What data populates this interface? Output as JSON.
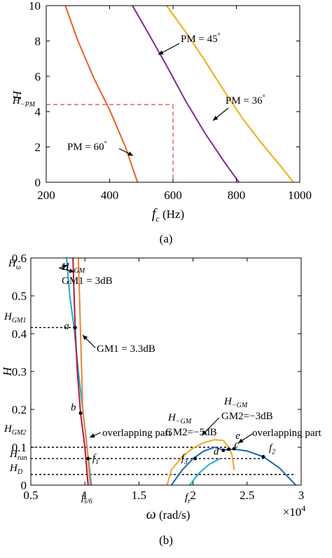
{
  "chart_data": [
    {
      "type": "line",
      "xlim": [
        200,
        1000
      ],
      "ylim": [
        0,
        10
      ],
      "xticks": [
        "200",
        "400",
        "600",
        "800",
        "1000"
      ],
      "yticks": [
        "0",
        "2",
        "4",
        "6",
        "8",
        "10"
      ],
      "xlabel": {
        "var": "f",
        "sub": "c",
        "unit": "(Hz)"
      },
      "ylabel": "H",
      "grid": false,
      "series": [
        {
          "name": "PM = 60°",
          "color": "#ec6024",
          "points": [
            [
              260,
              10.0
            ],
            [
              300,
              8.0
            ],
            [
              350,
              5.9
            ],
            [
              400,
              4.1
            ],
            [
              450,
              2.0
            ],
            [
              488,
              0.0
            ]
          ]
        },
        {
          "name": "PM = 45°",
          "color": "#7d2a96",
          "points": [
            [
              472,
              10.0
            ],
            [
              520,
              8.5
            ],
            [
              580,
              6.6
            ],
            [
              640,
              4.6
            ],
            [
              700,
              2.8
            ],
            [
              760,
              1.2
            ],
            [
              808,
              0.0
            ]
          ]
        },
        {
          "name": "PM = 36°",
          "color": "#f1aa19",
          "points": [
            [
              580,
              10.0
            ],
            [
              640,
              8.5
            ],
            [
              700,
              6.9
            ],
            [
              760,
              5.2
            ],
            [
              820,
              3.6
            ],
            [
              880,
              2.2
            ],
            [
              940,
              0.9
            ],
            [
              980,
              0.0
            ]
          ]
        }
      ],
      "reference": {
        "x": 600,
        "y": 4.4,
        "label": "H",
        "label_sub": "−PM",
        "color": "#e04040"
      },
      "annotations": [
        {
          "text": "PM = 45",
          "deg": "°",
          "at": [
            540,
            7.1
          ]
        },
        {
          "text": "PM = 36",
          "deg": "°",
          "at": [
            855,
            3.5
          ]
        },
        {
          "text": "PM = 60",
          "deg": "°",
          "at": [
            390,
            1.5
          ]
        }
      ],
      "caption": "(a)"
    },
    {
      "type": "line",
      "xlim": [
        0.5,
        3
      ],
      "ylim": [
        0,
        0.6
      ],
      "x_multiplier": "×10",
      "x_multiplier_exp": "4",
      "xticks": [
        "0.5",
        "1",
        "1.5",
        "2",
        "2.5",
        "3"
      ],
      "yticks": [
        "0",
        "0.1",
        "0.2",
        "0.3",
        "0.4",
        "0.5",
        "0.6"
      ],
      "xlabel": {
        "var": "ω",
        "unit": "(rad/s)"
      },
      "ylabel": "H",
      "grid": false,
      "series": [
        {
          "name": "H_ω",
          "color": "#1fa9d8",
          "points": [
            [
              0.83,
              0.6
            ],
            [
              0.86,
              0.5
            ],
            [
              0.9,
              0.415
            ],
            [
              0.94,
              0.3
            ],
            [
              0.98,
              0.2
            ],
            [
              1.02,
              0.1
            ],
            [
              1.06,
              0.0
            ]
          ]
        },
        {
          "name": "H_−GM GM1 = 3dB",
          "color": "#e8843a",
          "points": [
            [
              0.94,
              0.6
            ],
            [
              0.95,
              0.5
            ],
            [
              0.96,
              0.4
            ],
            [
              0.97,
              0.3
            ],
            [
              0.98,
              0.2
            ],
            [
              1.02,
              0.1
            ],
            [
              1.05,
              0.0
            ]
          ]
        },
        {
          "name": "GM1 = 3.3dB",
          "color": "#b01a3a",
          "points": [
            [
              0.89,
              0.6
            ],
            [
              0.9,
              0.5
            ],
            [
              0.91,
              0.415
            ],
            [
              0.93,
              0.3
            ],
            [
              0.96,
              0.19
            ],
            [
              1.0,
              0.1
            ],
            [
              1.03,
              0.0
            ]
          ]
        },
        {
          "name": "GM2 = −5dB",
          "color": "#f0a820",
          "points": [
            [
              1.76,
              0.0
            ],
            [
              1.8,
              0.04
            ],
            [
              1.9,
              0.075
            ],
            [
              2.0,
              0.098
            ],
            [
              2.1,
              0.112
            ],
            [
              2.2,
              0.12
            ],
            [
              2.28,
              0.118
            ],
            [
              2.33,
              0.1
            ],
            [
              2.36,
              0.08
            ],
            [
              2.38,
              0.04
            ]
          ]
        },
        {
          "name": "GM2 = −3dB",
          "color": "#1a66b0",
          "points": [
            [
              1.8,
              0.0
            ],
            [
              1.9,
              0.04
            ],
            [
              2.0,
              0.07
            ],
            [
              2.1,
              0.09
            ],
            [
              2.2,
              0.1
            ],
            [
              2.28,
              0.093
            ],
            [
              2.38,
              0.095
            ],
            [
              2.5,
              0.09
            ],
            [
              2.65,
              0.075
            ],
            [
              2.8,
              0.045
            ],
            [
              2.95,
              0.0
            ]
          ]
        },
        {
          "name": "f_r",
          "color": "#1fa9d8",
          "points": [
            [
              1.97,
              0.0
            ],
            [
              2.05,
              0.03
            ],
            [
              2.15,
              0.055
            ],
            [
              2.25,
              0.07
            ]
          ]
        }
      ],
      "reference_lines": [
        {
          "y": 0.416,
          "x_end": 0.91,
          "label": "H",
          "label_sub": "GM1"
        },
        {
          "y": 0.1,
          "x_end": 2.33,
          "label": "H",
          "label_sub": "GM2"
        },
        {
          "y": 0.07,
          "x_end": 2.65,
          "label": "H",
          "label_sub": "ran"
        },
        {
          "y": 0.028,
          "x_end": 2.95,
          "label": "H",
          "label_sub": "D"
        }
      ],
      "points": [
        {
          "label": "a",
          "x": 0.91,
          "y": 0.416
        },
        {
          "label": "b",
          "x": 0.96,
          "y": 0.19
        },
        {
          "label": "f",
          "label_sub": "1",
          "x": 1.03,
          "y": 0.07
        },
        {
          "label": "f",
          "label_sub": "3",
          "x": 2.02,
          "y": 0.07
        },
        {
          "label": "d",
          "x": 2.28,
          "y": 0.092
        },
        {
          "label": "c",
          "x": 2.33,
          "y": 0.095
        },
        {
          "label": "e",
          "x": 2.38,
          "y": 0.096
        },
        {
          "label": "f",
          "label_sub": "2",
          "x": 2.65,
          "y": 0.075
        }
      ],
      "annotations": [
        {
          "text": "H_ω",
          "at": [
            0.55,
            0.57
          ]
        },
        {
          "text": "H_−GM",
          "at": [
            0.95,
            0.56
          ]
        },
        {
          "text": "GM1 = 3dB",
          "at": [
            0.95,
            0.525
          ]
        },
        {
          "text": "GM1 = 3.3dB",
          "at": [
            1.11,
            0.37
          ]
        },
        {
          "text": "overlapping part",
          "at": [
            1.1,
            0.12
          ]
        },
        {
          "text": "H_−GM",
          "at": [
            1.72,
            0.2
          ]
        },
        {
          "text": "GM2=−5dB",
          "at": [
            1.7,
            0.165
          ]
        },
        {
          "text": "H_−GM",
          "at": [
            2.45,
            0.24
          ]
        },
        {
          "text": "GM2=−3dB",
          "at": [
            2.4,
            0.205
          ]
        },
        {
          "text": "overlapping part",
          "at": [
            2.4,
            0.13
          ]
        },
        {
          "text": "f_s/6",
          "at": [
            1.05,
            -0.045
          ]
        },
        {
          "text": "f_r",
          "at": [
            1.95,
            -0.045
          ]
        }
      ],
      "caption": "(b)"
    }
  ]
}
